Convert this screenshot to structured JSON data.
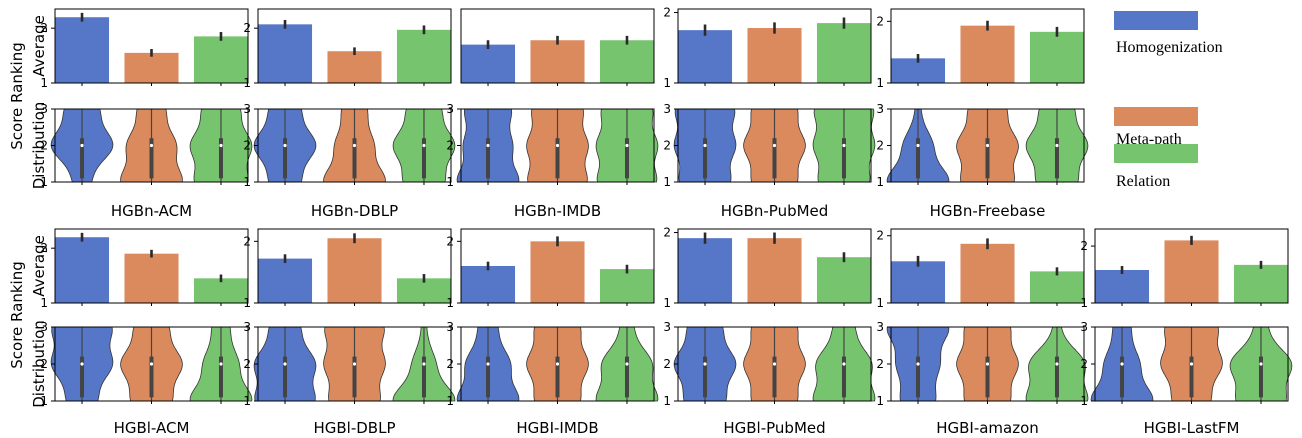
{
  "colors": {
    "homogenization": "#5677c8",
    "meta_path": "#db8a5e",
    "relation": "#77c46e",
    "err": "#2a2a2a",
    "violin_edge": "#333333",
    "inner": "#444444"
  },
  "legend": [
    {
      "label": "Homogenization",
      "color": "#5677c8"
    },
    {
      "label": "Meta-path",
      "color": "#db8a5e"
    },
    {
      "label": "Relation",
      "color": "#77c46e"
    }
  ],
  "row_labels": {
    "average": [
      "Average",
      "Score Ranking"
    ],
    "distribution": [
      "Distribution",
      "Score Ranking"
    ]
  },
  "chart_data": [
    {
      "type": "bar",
      "title": "HGBn-ACM",
      "categories": [
        "Homogenization",
        "Meta-path",
        "Relation"
      ],
      "values": [
        2.2,
        1.55,
        1.85
      ],
      "errors": [
        0.08,
        0.07,
        0.08
      ],
      "ylim": [
        1,
        2.35
      ],
      "yticks": [
        1,
        2
      ],
      "violin": [
        [
          0.15,
          0.55,
          0.3
        ],
        [
          0.45,
          0.35,
          0.2
        ],
        [
          0.35,
          0.4,
          0.25
        ]
      ]
    },
    {
      "type": "bar",
      "title": "HGBn-DBLP",
      "categories": [
        "Homogenization",
        "Meta-path",
        "Relation"
      ],
      "values": [
        2.07,
        1.58,
        1.97
      ],
      "errors": [
        0.08,
        0.07,
        0.08
      ],
      "ylim": [
        1,
        2.35
      ],
      "yticks": [
        1,
        2
      ],
      "violin": [
        [
          0.25,
          0.5,
          0.25
        ],
        [
          0.5,
          0.3,
          0.2
        ],
        [
          0.3,
          0.45,
          0.25
        ]
      ]
    },
    {
      "type": "bar",
      "title": "HGBn-IMDB",
      "categories": [
        "Homogenization",
        "Meta-path",
        "Relation"
      ],
      "values": [
        1.7,
        1.78,
        1.78
      ],
      "errors": [
        0.08,
        0.08,
        0.08
      ],
      "ylim": [
        1,
        2.35
      ],
      "yticks": [],
      "violin": [
        [
          0.4,
          0.3,
          0.3
        ],
        [
          0.35,
          0.35,
          0.3
        ],
        [
          0.35,
          0.35,
          0.3
        ]
      ]
    },
    {
      "type": "bar",
      "title": "HGBn-PubMed",
      "categories": [
        "Homogenization",
        "Meta-path",
        "Relation"
      ],
      "values": [
        1.75,
        1.78,
        1.85
      ],
      "errors": [
        0.08,
        0.08,
        0.08
      ],
      "ylim": [
        1,
        2.05
      ],
      "yticks": [
        1,
        2
      ],
      "violin": [
        [
          0.3,
          0.35,
          0.35
        ],
        [
          0.3,
          0.4,
          0.3
        ],
        [
          0.3,
          0.35,
          0.35
        ]
      ]
    },
    {
      "type": "bar",
      "title": "HGBn-Freebase",
      "categories": [
        "Homogenization",
        "Meta-path",
        "Relation"
      ],
      "values": [
        1.4,
        1.93,
        1.83
      ],
      "errors": [
        0.07,
        0.08,
        0.08
      ],
      "ylim": [
        1,
        2.2
      ],
      "yticks": [
        1,
        2
      ],
      "violin": [
        [
          0.65,
          0.3,
          0.05
        ],
        [
          0.35,
          0.4,
          0.25
        ],
        [
          0.3,
          0.45,
          0.25
        ]
      ]
    },
    {
      "type": "bar",
      "title": "HGBl-ACM",
      "categories": [
        "Homogenization",
        "Meta-path",
        "Relation"
      ],
      "values": [
        2.2,
        1.9,
        1.45
      ],
      "errors": [
        0.08,
        0.07,
        0.07
      ],
      "ylim": [
        1,
        2.35
      ],
      "yticks": [
        1,
        2
      ],
      "violin": [
        [
          0.2,
          0.4,
          0.4
        ],
        [
          0.3,
          0.45,
          0.25
        ],
        [
          0.55,
          0.3,
          0.15
        ]
      ]
    },
    {
      "type": "bar",
      "title": "HGBl-DBLP",
      "categories": [
        "Homogenization",
        "Meta-path",
        "Relation"
      ],
      "values": [
        1.72,
        2.05,
        1.4
      ],
      "errors": [
        0.07,
        0.08,
        0.07
      ],
      "ylim": [
        1,
        2.2
      ],
      "yticks": [
        1,
        2
      ],
      "violin": [
        [
          0.4,
          0.4,
          0.2
        ],
        [
          0.3,
          0.35,
          0.35
        ],
        [
          0.7,
          0.25,
          0.05
        ]
      ]
    },
    {
      "type": "bar",
      "title": "HGBI-IMDB",
      "categories": [
        "Homogenization",
        "Meta-path",
        "Relation"
      ],
      "values": [
        1.6,
        2.0,
        1.55
      ],
      "errors": [
        0.07,
        0.08,
        0.07
      ],
      "ylim": [
        1,
        2.2
      ],
      "yticks": [
        1,
        2
      ],
      "violin": [
        [
          0.5,
          0.35,
          0.15
        ],
        [
          0.3,
          0.4,
          0.3
        ],
        [
          0.5,
          0.4,
          0.1
        ]
      ]
    },
    {
      "type": "bar",
      "title": "HGBl-PubMed",
      "categories": [
        "Homogenization",
        "Meta-path",
        "Relation"
      ],
      "values": [
        1.92,
        1.92,
        1.65
      ],
      "errors": [
        0.08,
        0.08,
        0.07
      ],
      "ylim": [
        1,
        2.05
      ],
      "yticks": [
        1,
        2
      ],
      "violin": [
        [
          0.3,
          0.45,
          0.25
        ],
        [
          0.3,
          0.4,
          0.3
        ],
        [
          0.45,
          0.4,
          0.15
        ]
      ]
    },
    {
      "type": "bar",
      "title": "HGBI-amazon",
      "categories": [
        "Homogenization",
        "Meta-path",
        "Relation"
      ],
      "values": [
        1.62,
        1.88,
        1.47
      ],
      "errors": [
        0.08,
        0.08,
        0.06
      ],
      "ylim": [
        1,
        2.1
      ],
      "yticks": [
        1,
        2
      ],
      "violin": [
        [
          0.25,
          0.3,
          0.45
        ],
        [
          0.3,
          0.4,
          0.3
        ],
        [
          0.5,
          0.45,
          0.05
        ]
      ]
    },
    {
      "type": "bar",
      "title": "HGBI-LastFM",
      "categories": [
        "Homogenization",
        "Meta-path",
        "Relation"
      ],
      "values": [
        1.58,
        2.1,
        1.67
      ],
      "errors": [
        0.07,
        0.08,
        0.07
      ],
      "ylim": [
        1,
        2.3
      ],
      "yticks": [
        1,
        2
      ],
      "violin": [
        [
          0.55,
          0.3,
          0.15
        ],
        [
          0.25,
          0.4,
          0.35
        ],
        [
          0.4,
          0.5,
          0.1
        ]
      ]
    }
  ]
}
